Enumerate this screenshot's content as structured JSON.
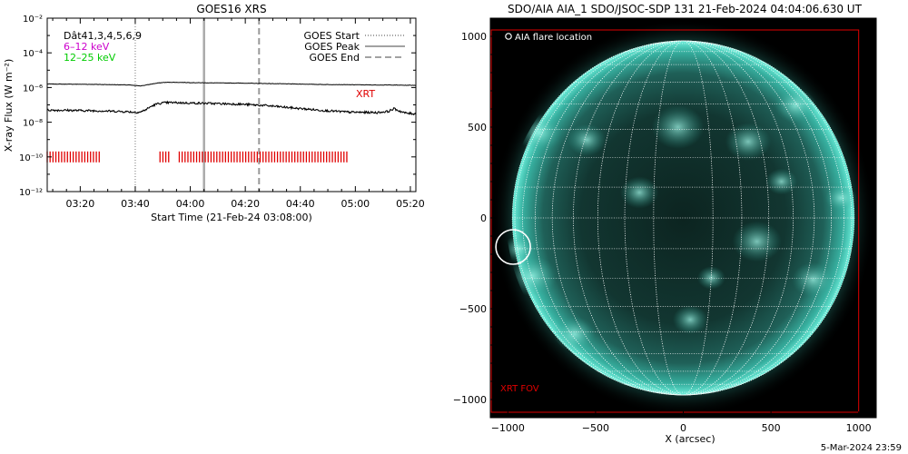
{
  "chart_data": [
    {
      "type": "line",
      "title": "GOES16 XRS",
      "xlabel": "Start Time (21-Feb-24 03:08:00)",
      "ylabel": "X-ray Flux (W m⁻²)",
      "y_scale": "log",
      "ylim": [
        1e-12,
        0.01
      ],
      "ytick_labels": [
        "10⁻¹²",
        "10⁻¹⁰",
        "10⁻⁸",
        "10⁻⁶",
        "10⁻⁴",
        "10⁻²"
      ],
      "xlim_minutes_from_start": [
        0,
        134
      ],
      "xtick_labels": [
        "03:20",
        "03:40",
        "04:00",
        "04:20",
        "04:40",
        "05:00",
        "05:20"
      ],
      "xtick_minutes": [
        12,
        32,
        52,
        72,
        92,
        112,
        132
      ],
      "legend_left": [
        {
          "text": "Dât41,3,4,5,6,9",
          "color": "#000000"
        },
        {
          "text": "6–12 keV",
          "color": "#cc00cc"
        },
        {
          "text": "12–25 keV",
          "color": "#00cc00"
        }
      ],
      "legend_right": [
        {
          "text": "GOES Start",
          "style": "dotted",
          "minute": 32
        },
        {
          "text": "GOES Peak",
          "style": "solid",
          "minute": 57
        },
        {
          "text": "GOES End",
          "style": "dashed",
          "minute": 77
        }
      ],
      "xrt_label": "XRT",
      "series": [
        {
          "color": "#000000",
          "x": [
            0,
            10,
            20,
            30,
            32,
            34,
            36,
            38,
            40,
            42,
            44,
            46,
            50,
            55,
            60,
            70,
            80,
            90,
            100,
            110,
            120,
            125,
            130,
            134
          ],
          "values": [
            1.6e-06,
            1.55e-06,
            1.5e-06,
            1.4e-06,
            1.3e-06,
            1.25e-06,
            1.4e-06,
            1.6e-06,
            1.8e-06,
            1.95e-06,
            2e-06,
            2e-06,
            1.95e-06,
            1.9e-06,
            1.85e-06,
            1.8e-06,
            1.7e-06,
            1.6e-06,
            1.5e-06,
            1.45e-06,
            1.4e-06,
            1.4e-06,
            1.35e-06,
            1.35e-06
          ]
        },
        {
          "color": "#000000",
          "x": [
            0,
            10,
            20,
            30,
            32,
            34,
            36,
            38,
            40,
            42,
            44,
            46,
            50,
            55,
            60,
            70,
            80,
            90,
            100,
            110,
            120,
            124,
            126,
            128,
            130,
            134
          ],
          "values": [
            5e-08,
            4.8e-08,
            4.5e-08,
            4e-08,
            3.7e-08,
            3.9e-08,
            5.5e-08,
            8.5e-08,
            1.15e-07,
            1.3e-07,
            1.35e-07,
            1.35e-07,
            1.3e-07,
            1.25e-07,
            1.2e-07,
            1.1e-07,
            9e-08,
            6.5e-08,
            4.8e-08,
            3.8e-08,
            3.6e-08,
            4.2e-08,
            6e-08,
            4.5e-08,
            3.4e-08,
            3e-08
          ]
        }
      ],
      "xrt_coverage_minutes": [
        [
          0,
          19
        ],
        [
          41,
          45
        ],
        [
          48,
          109
        ]
      ]
    },
    {
      "type": "image",
      "title": "SDO/AIA AIA_1 SDO/JSOC-SDP 131 21-Feb-2024 04:04:06.630 UT",
      "xlabel": "X (arcsec)",
      "ylabel": "",
      "xlim": [
        -1100,
        1100
      ],
      "ylim": [
        -1100,
        1100
      ],
      "ticks": [
        -1000,
        -500,
        0,
        500,
        1000
      ],
      "xtick_labels": [
        "−1000",
        "−500",
        "0",
        "500",
        "1000"
      ],
      "ytick_labels": [
        "−1000",
        "−500",
        "0",
        "500",
        "1000"
      ],
      "solar_radius_arcsec": 975,
      "flare_location_arcsec": [
        -970,
        -160
      ],
      "legend_text": "AIA flare location",
      "xrt_fov_label": "XRT FOV",
      "xrt_fov_arcsec": [
        -1100,
        1000,
        -1070,
        1035
      ],
      "footer": "5-Mar-2024 23:59"
    }
  ],
  "colors": {
    "xrt": "#e00000",
    "disk_edge": "#3cc8b4",
    "disk_center": "#0e2a26",
    "grid": "#ffffff"
  }
}
